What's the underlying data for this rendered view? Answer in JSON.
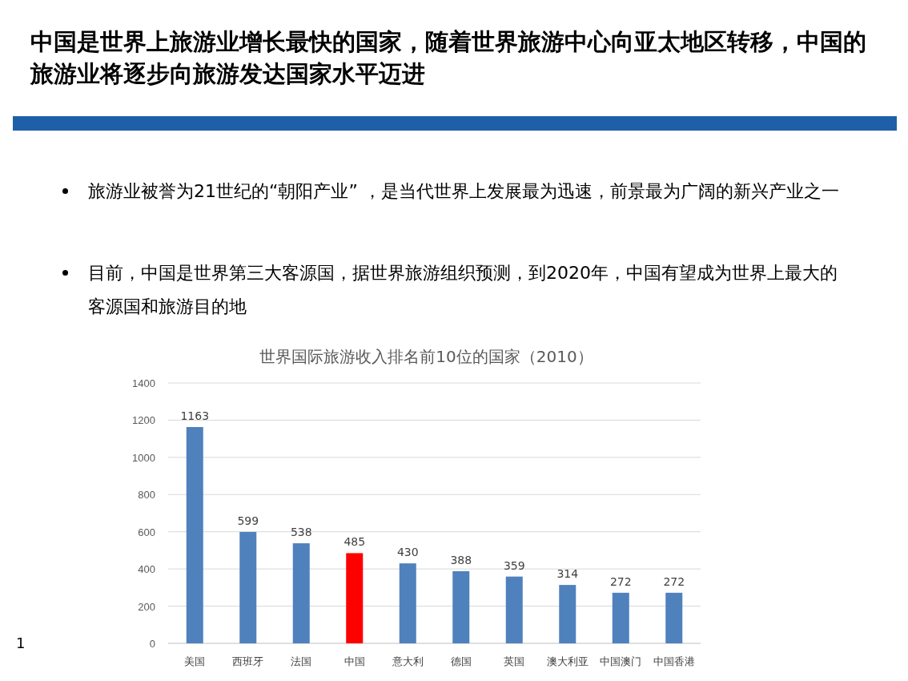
{
  "chart_data": {
    "type": "bar",
    "title": "中国是世界上旅游业增长最快的国家，随着世界旅游中心向亚太地区转移，中国的旅游业将逐步向旅游发达国家水平迈进",
    "subtitle": "世界国际旅游收入排名前10位的国家（2010）",
    "annotations": [
      "旅游业被誉为21世纪的“朝阳产业” ，是当代世界上发展最为迅速，前景最为广阔的新兴产业之一",
      "目前，中国是世界第三大客源国，据世界旅游组织预测，到2020年，中国有望成为世界上最大的客源国和旅游目的地",
      "1"
    ],
    "categories": [
      "美国",
      "西班牙",
      "法国",
      "中国",
      "意大利",
      "德国",
      "英国",
      "澳大利亚",
      "中国澳门",
      "中国香港"
    ],
    "values": [
      1163,
      599,
      538,
      485,
      430,
      388,
      359,
      314,
      272,
      272
    ],
    "colors": [
      "#4f81bd",
      "#4f81bd",
      "#4f81bd",
      "#ff0000",
      "#4f81bd",
      "#4f81bd",
      "#4f81bd",
      "#4f81bd",
      "#4f81bd",
      "#4f81bd"
    ],
    "ylim": [
      0,
      1400
    ],
    "yticks": [
      0,
      200,
      400,
      600,
      800,
      1000,
      1200,
      1400
    ],
    "grid": "y",
    "data_labels": true
  }
}
